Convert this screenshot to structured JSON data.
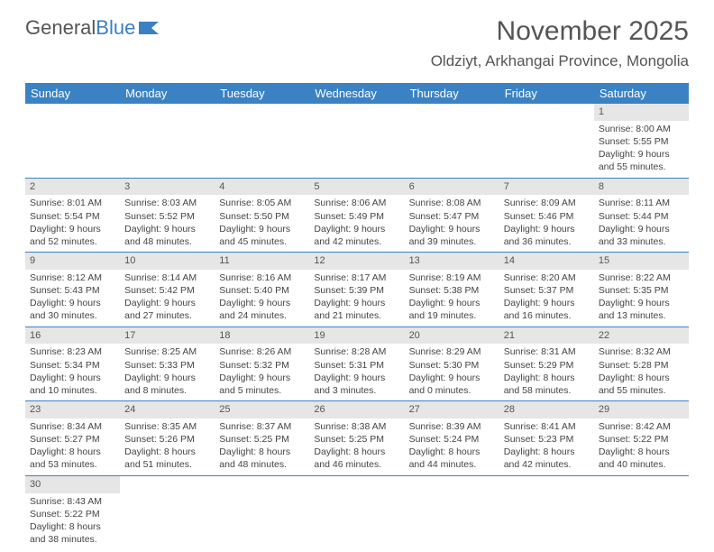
{
  "logo": {
    "text1": "General",
    "text2": "Blue"
  },
  "title": "November 2025",
  "location": "Oldziyt, Arkhangai Province, Mongolia",
  "colors": {
    "header_bg": "#3b82c4",
    "header_fg": "#ffffff",
    "daynum_bg": "#e6e6e6",
    "border": "#3b82c4"
  },
  "weekdays": [
    "Sunday",
    "Monday",
    "Tuesday",
    "Wednesday",
    "Thursday",
    "Friday",
    "Saturday"
  ],
  "weeks": [
    [
      null,
      null,
      null,
      null,
      null,
      null,
      {
        "n": "1",
        "sr": "Sunrise: 8:00 AM",
        "ss": "Sunset: 5:55 PM",
        "dl": "Daylight: 9 hours and 55 minutes."
      }
    ],
    [
      {
        "n": "2",
        "sr": "Sunrise: 8:01 AM",
        "ss": "Sunset: 5:54 PM",
        "dl": "Daylight: 9 hours and 52 minutes."
      },
      {
        "n": "3",
        "sr": "Sunrise: 8:03 AM",
        "ss": "Sunset: 5:52 PM",
        "dl": "Daylight: 9 hours and 48 minutes."
      },
      {
        "n": "4",
        "sr": "Sunrise: 8:05 AM",
        "ss": "Sunset: 5:50 PM",
        "dl": "Daylight: 9 hours and 45 minutes."
      },
      {
        "n": "5",
        "sr": "Sunrise: 8:06 AM",
        "ss": "Sunset: 5:49 PM",
        "dl": "Daylight: 9 hours and 42 minutes."
      },
      {
        "n": "6",
        "sr": "Sunrise: 8:08 AM",
        "ss": "Sunset: 5:47 PM",
        "dl": "Daylight: 9 hours and 39 minutes."
      },
      {
        "n": "7",
        "sr": "Sunrise: 8:09 AM",
        "ss": "Sunset: 5:46 PM",
        "dl": "Daylight: 9 hours and 36 minutes."
      },
      {
        "n": "8",
        "sr": "Sunrise: 8:11 AM",
        "ss": "Sunset: 5:44 PM",
        "dl": "Daylight: 9 hours and 33 minutes."
      }
    ],
    [
      {
        "n": "9",
        "sr": "Sunrise: 8:12 AM",
        "ss": "Sunset: 5:43 PM",
        "dl": "Daylight: 9 hours and 30 minutes."
      },
      {
        "n": "10",
        "sr": "Sunrise: 8:14 AM",
        "ss": "Sunset: 5:42 PM",
        "dl": "Daylight: 9 hours and 27 minutes."
      },
      {
        "n": "11",
        "sr": "Sunrise: 8:16 AM",
        "ss": "Sunset: 5:40 PM",
        "dl": "Daylight: 9 hours and 24 minutes."
      },
      {
        "n": "12",
        "sr": "Sunrise: 8:17 AM",
        "ss": "Sunset: 5:39 PM",
        "dl": "Daylight: 9 hours and 21 minutes."
      },
      {
        "n": "13",
        "sr": "Sunrise: 8:19 AM",
        "ss": "Sunset: 5:38 PM",
        "dl": "Daylight: 9 hours and 19 minutes."
      },
      {
        "n": "14",
        "sr": "Sunrise: 8:20 AM",
        "ss": "Sunset: 5:37 PM",
        "dl": "Daylight: 9 hours and 16 minutes."
      },
      {
        "n": "15",
        "sr": "Sunrise: 8:22 AM",
        "ss": "Sunset: 5:35 PM",
        "dl": "Daylight: 9 hours and 13 minutes."
      }
    ],
    [
      {
        "n": "16",
        "sr": "Sunrise: 8:23 AM",
        "ss": "Sunset: 5:34 PM",
        "dl": "Daylight: 9 hours and 10 minutes."
      },
      {
        "n": "17",
        "sr": "Sunrise: 8:25 AM",
        "ss": "Sunset: 5:33 PM",
        "dl": "Daylight: 9 hours and 8 minutes."
      },
      {
        "n": "18",
        "sr": "Sunrise: 8:26 AM",
        "ss": "Sunset: 5:32 PM",
        "dl": "Daylight: 9 hours and 5 minutes."
      },
      {
        "n": "19",
        "sr": "Sunrise: 8:28 AM",
        "ss": "Sunset: 5:31 PM",
        "dl": "Daylight: 9 hours and 3 minutes."
      },
      {
        "n": "20",
        "sr": "Sunrise: 8:29 AM",
        "ss": "Sunset: 5:30 PM",
        "dl": "Daylight: 9 hours and 0 minutes."
      },
      {
        "n": "21",
        "sr": "Sunrise: 8:31 AM",
        "ss": "Sunset: 5:29 PM",
        "dl": "Daylight: 8 hours and 58 minutes."
      },
      {
        "n": "22",
        "sr": "Sunrise: 8:32 AM",
        "ss": "Sunset: 5:28 PM",
        "dl": "Daylight: 8 hours and 55 minutes."
      }
    ],
    [
      {
        "n": "23",
        "sr": "Sunrise: 8:34 AM",
        "ss": "Sunset: 5:27 PM",
        "dl": "Daylight: 8 hours and 53 minutes."
      },
      {
        "n": "24",
        "sr": "Sunrise: 8:35 AM",
        "ss": "Sunset: 5:26 PM",
        "dl": "Daylight: 8 hours and 51 minutes."
      },
      {
        "n": "25",
        "sr": "Sunrise: 8:37 AM",
        "ss": "Sunset: 5:25 PM",
        "dl": "Daylight: 8 hours and 48 minutes."
      },
      {
        "n": "26",
        "sr": "Sunrise: 8:38 AM",
        "ss": "Sunset: 5:25 PM",
        "dl": "Daylight: 8 hours and 46 minutes."
      },
      {
        "n": "27",
        "sr": "Sunrise: 8:39 AM",
        "ss": "Sunset: 5:24 PM",
        "dl": "Daylight: 8 hours and 44 minutes."
      },
      {
        "n": "28",
        "sr": "Sunrise: 8:41 AM",
        "ss": "Sunset: 5:23 PM",
        "dl": "Daylight: 8 hours and 42 minutes."
      },
      {
        "n": "29",
        "sr": "Sunrise: 8:42 AM",
        "ss": "Sunset: 5:22 PM",
        "dl": "Daylight: 8 hours and 40 minutes."
      }
    ],
    [
      {
        "n": "30",
        "sr": "Sunrise: 8:43 AM",
        "ss": "Sunset: 5:22 PM",
        "dl": "Daylight: 8 hours and 38 minutes."
      },
      null,
      null,
      null,
      null,
      null,
      null
    ]
  ]
}
